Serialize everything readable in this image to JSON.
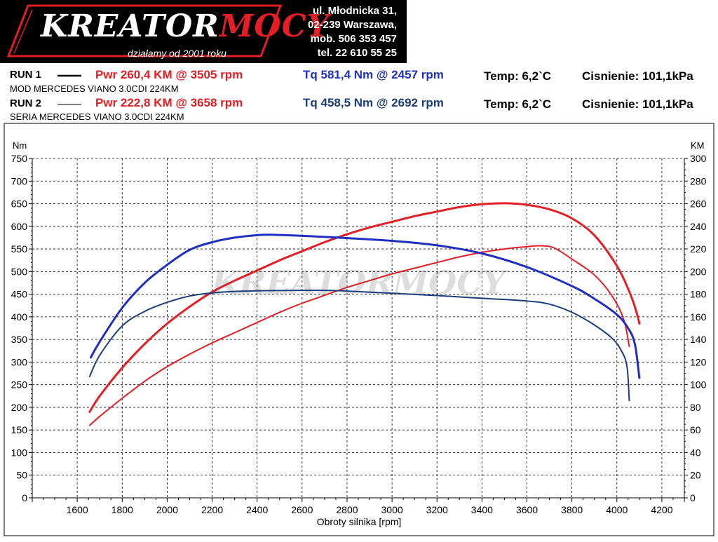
{
  "header": {
    "logo_text_main": "KREATOR",
    "logo_text_accent": "MOCY",
    "tagline": "działamy od 2001 roku",
    "address": [
      "ul. Młodnicka 31,",
      "02-239  Warszawa,",
      "mob.  506 353 457",
      "tel.  22 610 55 25"
    ]
  },
  "runs": [
    {
      "label": "RUN 1",
      "pwr": "Pwr  260,4 KM @ 3505 rpm",
      "tq": "Tq 581,4 Nm @ 2457 rpm",
      "temp": "Temp: 6,2`C",
      "pressure": "Cisnienie: 101,1kPa",
      "desc": "MOD MERCEDES VIANO 3.0CDI 224KM"
    },
    {
      "label": "RUN 2",
      "pwr": "Pwr  222,8 KM @ 3658 rpm",
      "tq": "Tq 458,5 Nm @ 2692 rpm",
      "temp": "Temp: 6,2`C",
      "pressure": "Cisnienie: 101,1kPa",
      "desc": "SERIA MERCEDES VIANO 3.0CDI 224KM"
    }
  ],
  "colors": {
    "power": "#e31e24",
    "torque_run1": "#1f2fbf",
    "torque_run2": "#1a3d7a"
  },
  "chart_data": {
    "type": "line",
    "xlabel": "Obroty silnika [rpm]",
    "ylabel_left": "Nm",
    "ylabel_right": "KM",
    "xlim": [
      1400,
      4300
    ],
    "ylim_left": [
      0,
      750
    ],
    "ylim_right": [
      0,
      300
    ],
    "x_ticks": [
      1600,
      1800,
      2000,
      2200,
      2400,
      2600,
      2800,
      3000,
      3200,
      3400,
      3600,
      3800,
      4000,
      4200
    ],
    "y_ticks_left": [
      0,
      50,
      100,
      150,
      200,
      250,
      300,
      350,
      400,
      450,
      500,
      550,
      600,
      650,
      700,
      750
    ],
    "y_ticks_right": [
      0,
      20,
      40,
      60,
      80,
      100,
      120,
      140,
      160,
      180,
      200,
      220,
      240,
      260,
      280,
      300
    ],
    "grid": true,
    "series": [
      {
        "axis": "right",
        "color": "#e31e24",
        "width": 3,
        "points": [
          [
            1655,
            76
          ],
          [
            1700,
            90
          ],
          [
            1800,
            115
          ],
          [
            1900,
            136
          ],
          [
            2000,
            154
          ],
          [
            2100,
            169
          ],
          [
            2200,
            182
          ],
          [
            2300,
            192
          ],
          [
            2400,
            201
          ],
          [
            2500,
            210
          ],
          [
            2600,
            218
          ],
          [
            2700,
            226
          ],
          [
            2800,
            233
          ],
          [
            2900,
            239
          ],
          [
            3000,
            244
          ],
          [
            3100,
            249
          ],
          [
            3200,
            253
          ],
          [
            3300,
            257
          ],
          [
            3400,
            259.5
          ],
          [
            3505,
            260.4
          ],
          [
            3600,
            259
          ],
          [
            3700,
            255
          ],
          [
            3800,
            247
          ],
          [
            3900,
            232
          ],
          [
            4000,
            205
          ],
          [
            4060,
            180
          ],
          [
            4090,
            162
          ],
          [
            4100,
            154
          ]
        ]
      },
      {
        "axis": "right",
        "color": "#e31e24",
        "width": 2,
        "points": [
          [
            1655,
            64
          ],
          [
            1700,
            72
          ],
          [
            1800,
            88
          ],
          [
            1900,
            103
          ],
          [
            2000,
            116
          ],
          [
            2100,
            127
          ],
          [
            2200,
            137
          ],
          [
            2300,
            146
          ],
          [
            2400,
            155
          ],
          [
            2500,
            164
          ],
          [
            2600,
            172
          ],
          [
            2700,
            179
          ],
          [
            2800,
            186
          ],
          [
            2900,
            192
          ],
          [
            3000,
            198
          ],
          [
            3100,
            203
          ],
          [
            3200,
            208
          ],
          [
            3300,
            213
          ],
          [
            3400,
            217
          ],
          [
            3500,
            220
          ],
          [
            3600,
            222
          ],
          [
            3658,
            222.8
          ],
          [
            3720,
            221
          ],
          [
            3800,
            211
          ],
          [
            3900,
            197
          ],
          [
            3980,
            178
          ],
          [
            4030,
            158
          ],
          [
            4055,
            134
          ]
        ]
      },
      {
        "axis": "left",
        "color": "#1f2fbf",
        "width": 3,
        "points": [
          [
            1660,
            310
          ],
          [
            1700,
            345
          ],
          [
            1800,
            420
          ],
          [
            1900,
            475
          ],
          [
            2000,
            515
          ],
          [
            2100,
            548
          ],
          [
            2200,
            565
          ],
          [
            2300,
            575
          ],
          [
            2400,
            580.5
          ],
          [
            2457,
            581.4
          ],
          [
            2600,
            579
          ],
          [
            2800,
            574
          ],
          [
            3000,
            568
          ],
          [
            3200,
            558
          ],
          [
            3400,
            540
          ],
          [
            3600,
            510
          ],
          [
            3800,
            468
          ],
          [
            3900,
            440
          ],
          [
            4000,
            405
          ],
          [
            4050,
            375
          ],
          [
            4080,
            340
          ],
          [
            4100,
            265
          ]
        ]
      },
      {
        "axis": "left",
        "color": "#1a3d7a",
        "width": 2,
        "points": [
          [
            1655,
            268
          ],
          [
            1700,
            315
          ],
          [
            1800,
            380
          ],
          [
            1900,
            412
          ],
          [
            2000,
            432
          ],
          [
            2100,
            446
          ],
          [
            2200,
            453
          ],
          [
            2300,
            456
          ],
          [
            2400,
            457.5
          ],
          [
            2500,
            458
          ],
          [
            2692,
            458.5
          ],
          [
            2800,
            457
          ],
          [
            3000,
            452
          ],
          [
            3200,
            447
          ],
          [
            3400,
            441
          ],
          [
            3600,
            435
          ],
          [
            3700,
            428
          ],
          [
            3800,
            410
          ],
          [
            3900,
            382
          ],
          [
            3980,
            352
          ],
          [
            4020,
            325
          ],
          [
            4045,
            290
          ],
          [
            4055,
            215
          ]
        ]
      }
    ]
  }
}
